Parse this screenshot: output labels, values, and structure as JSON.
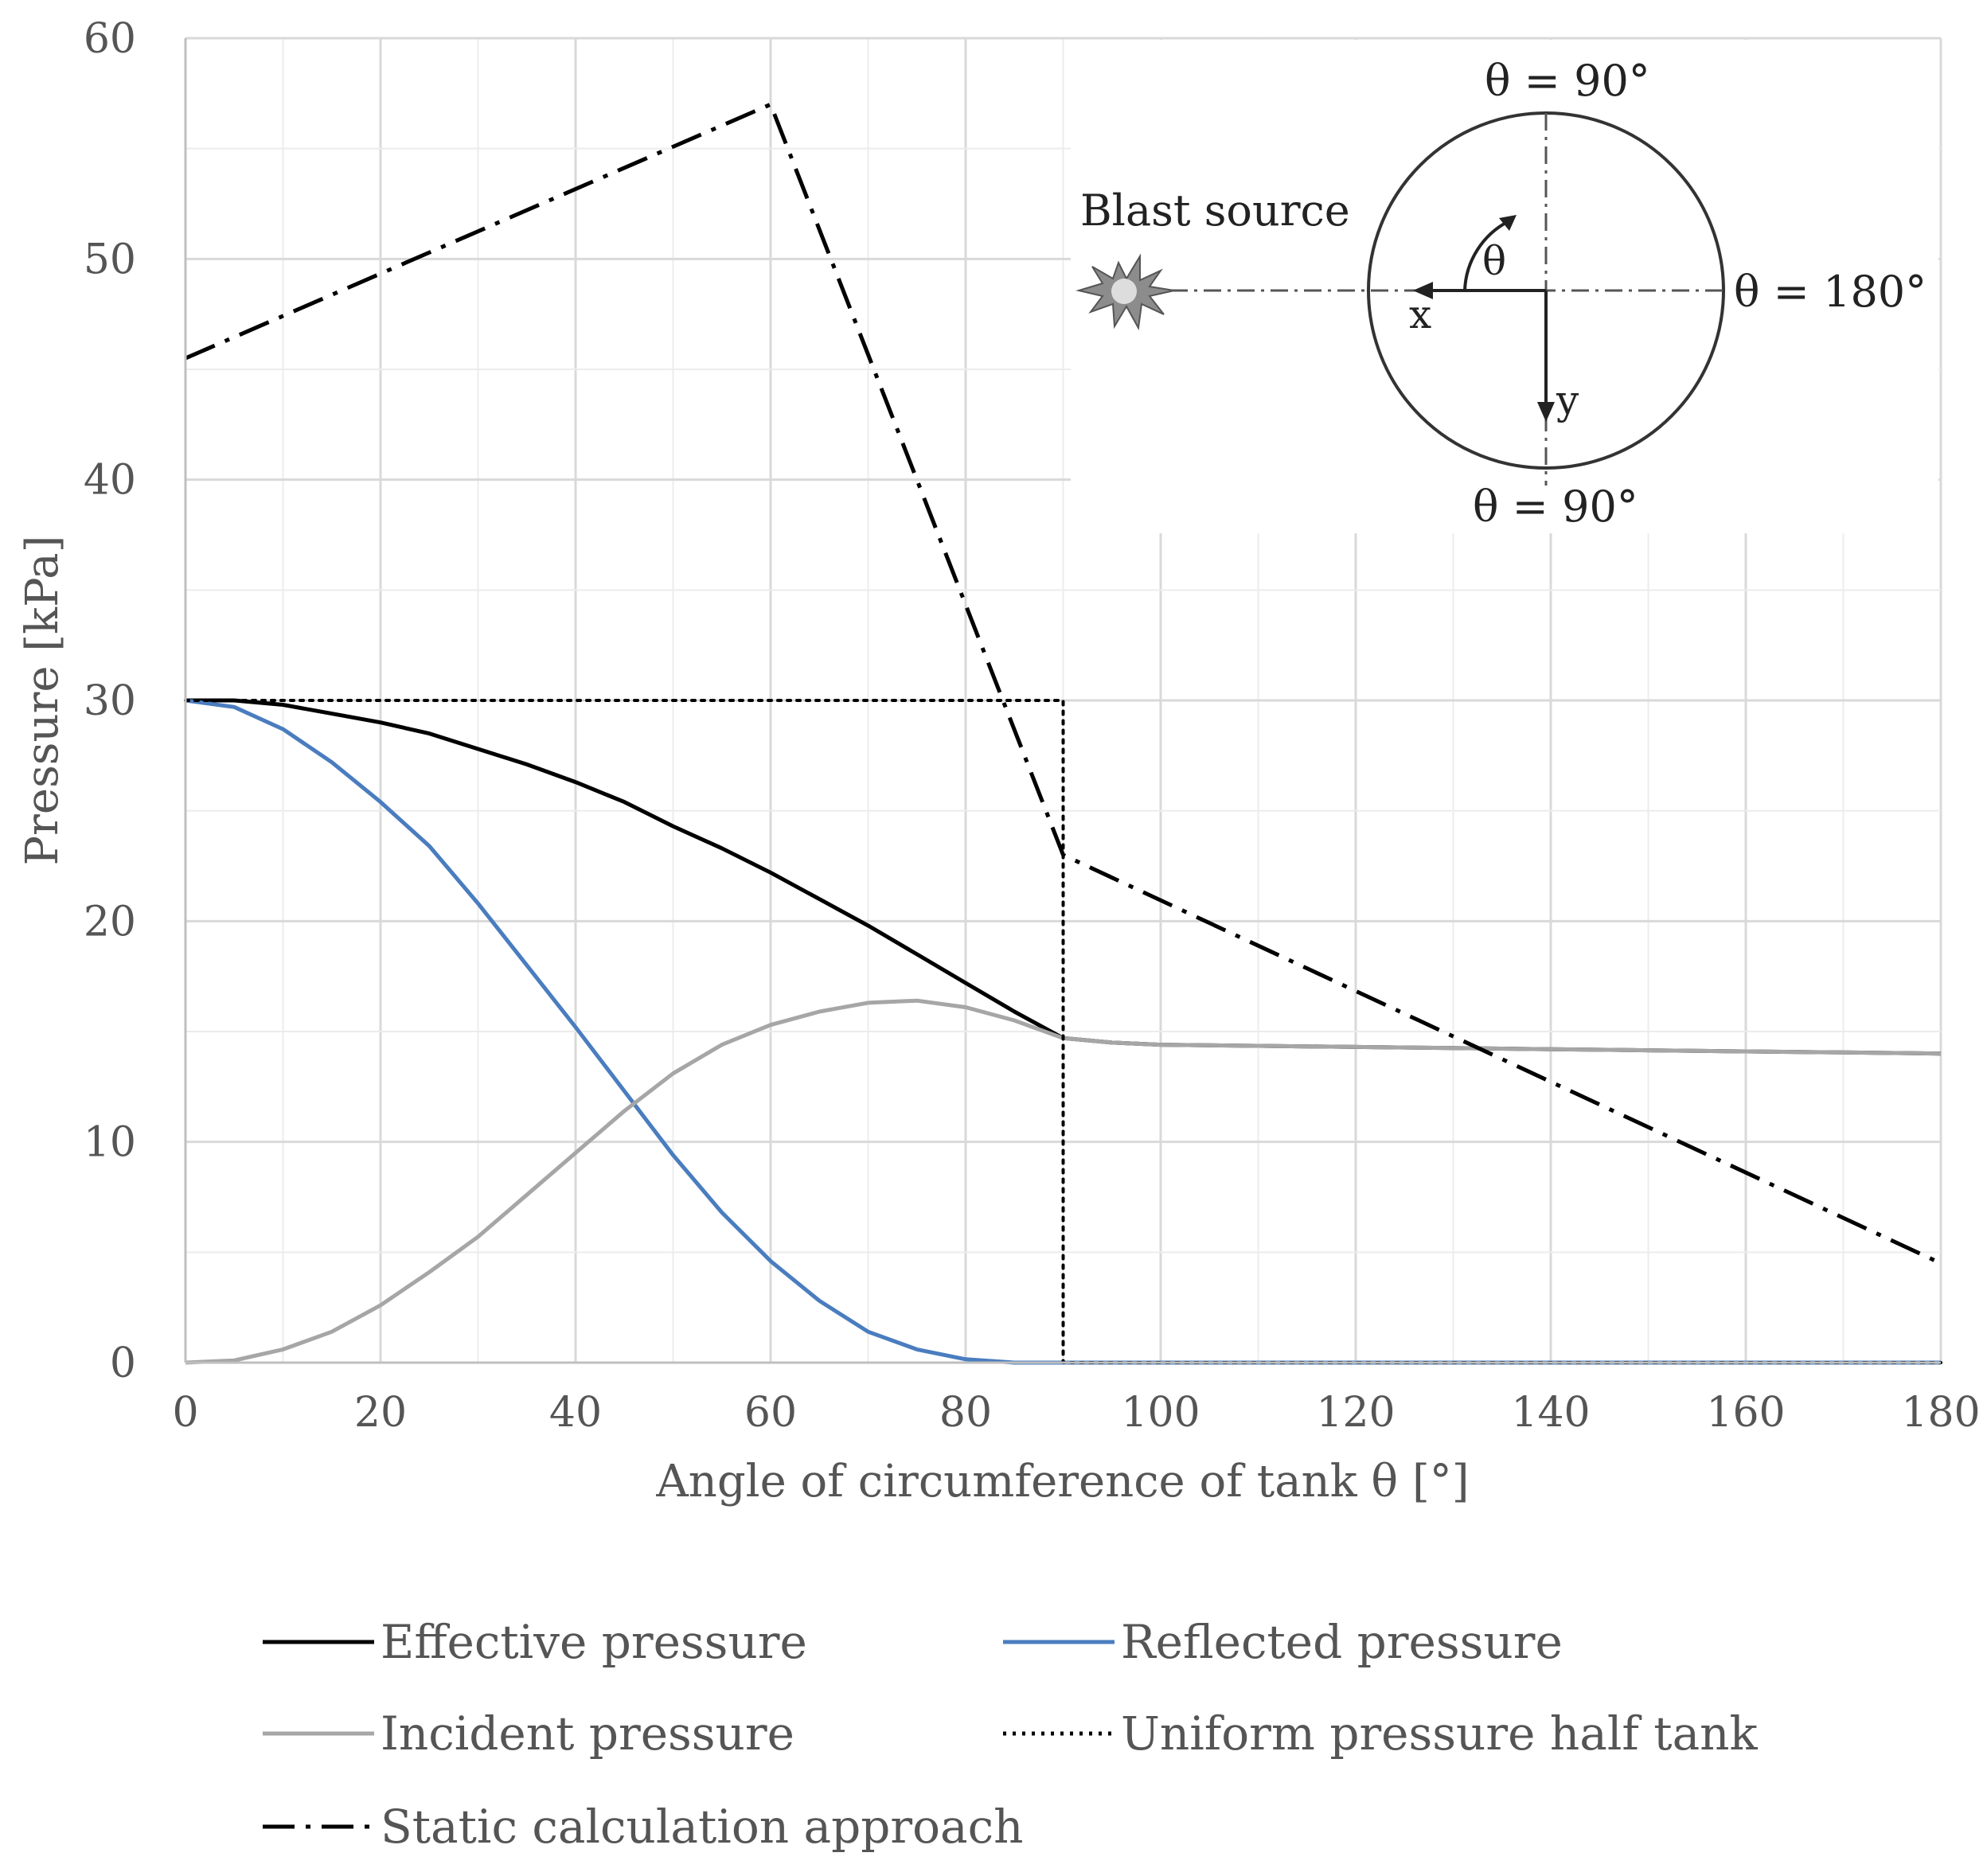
{
  "chart_data": {
    "type": "line",
    "title": "",
    "xlabel": "Angle of circumference of tank θ [°]",
    "ylabel": "Pressure [kPa]",
    "xlim": [
      0,
      180
    ],
    "ylim": [
      0,
      60
    ],
    "x_ticks": [
      0,
      20,
      40,
      60,
      80,
      100,
      120,
      140,
      160,
      180
    ],
    "y_ticks": [
      0,
      10,
      20,
      30,
      40,
      50,
      60
    ],
    "x_tick_labels": [
      "0",
      "20",
      "40",
      "60",
      "80",
      "100",
      "120",
      "140",
      "160",
      "180"
    ],
    "y_tick_labels": [
      "0",
      "10",
      "20",
      "30",
      "40",
      "50",
      "60"
    ],
    "grid": true,
    "legend_position": "bottom",
    "series": [
      {
        "name": "Effective pressure",
        "color": "#000000",
        "style": "solid",
        "x": [
          0,
          5,
          10,
          15,
          20,
          25,
          30,
          35,
          40,
          45,
          50,
          55,
          60,
          65,
          70,
          75,
          80,
          85,
          90,
          95,
          100,
          110,
          120,
          130,
          140,
          150,
          160,
          170,
          180
        ],
        "y": [
          30.0,
          30.0,
          29.8,
          29.4,
          29.0,
          28.5,
          27.8,
          27.1,
          26.3,
          25.4,
          24.3,
          23.3,
          22.2,
          21.0,
          19.8,
          18.5,
          17.2,
          15.9,
          14.7,
          14.5,
          14.4,
          14.35,
          14.3,
          14.25,
          14.2,
          14.15,
          14.1,
          14.05,
          14.0
        ]
      },
      {
        "name": "Reflected pressure",
        "color": "#4a7dbf",
        "style": "solid",
        "x": [
          0,
          5,
          10,
          15,
          20,
          25,
          30,
          35,
          40,
          45,
          50,
          55,
          60,
          65,
          70,
          75,
          80,
          85,
          90,
          100,
          120,
          140,
          160,
          180
        ],
        "y": [
          30.0,
          29.7,
          28.7,
          27.2,
          25.4,
          23.4,
          20.8,
          18.0,
          15.2,
          12.3,
          9.4,
          6.8,
          4.6,
          2.8,
          1.4,
          0.6,
          0.15,
          0.0,
          0.0,
          0.0,
          0.0,
          0.0,
          0.0,
          0.0
        ]
      },
      {
        "name": "Incident pressure",
        "color": "#a6a6a6",
        "style": "solid",
        "x": [
          0,
          5,
          10,
          15,
          20,
          25,
          30,
          35,
          40,
          45,
          50,
          55,
          60,
          65,
          70,
          75,
          80,
          85,
          90,
          95,
          100,
          110,
          120,
          130,
          140,
          150,
          160,
          170,
          180
        ],
        "y": [
          0.0,
          0.1,
          0.6,
          1.4,
          2.6,
          4.1,
          5.7,
          7.6,
          9.5,
          11.4,
          13.1,
          14.4,
          15.3,
          15.9,
          16.3,
          16.4,
          16.1,
          15.5,
          14.7,
          14.5,
          14.4,
          14.35,
          14.3,
          14.25,
          14.2,
          14.15,
          14.1,
          14.05,
          14.0
        ]
      },
      {
        "name": "Uniform pressure half tank",
        "color": "#000000",
        "style": "dotted",
        "x": [
          0,
          90,
          90,
          180
        ],
        "y": [
          30.0,
          30.0,
          0.0,
          0.0
        ]
      },
      {
        "name": "Static calculation approach",
        "color": "#000000",
        "style": "dashdot",
        "x": [
          0,
          60,
          90,
          180
        ],
        "y": [
          45.5,
          57.0,
          23.0,
          4.5
        ]
      }
    ],
    "inset": {
      "blast_label": "Blast source",
      "theta_top": "θ = 90°",
      "theta_bottom": "θ = 90°",
      "theta_right": "θ = 180°",
      "theta": "θ",
      "x_axis": "x",
      "y_axis": "y"
    }
  },
  "legend": {
    "items": [
      {
        "label": "Effective pressure",
        "color": "#000000",
        "style": "solid"
      },
      {
        "label": "Reflected pressure",
        "color": "#4a7dbf",
        "style": "solid"
      },
      {
        "label": "Incident pressure",
        "color": "#a6a6a6",
        "style": "solid"
      },
      {
        "label": "Uniform pressure half tank",
        "color": "#000000",
        "style": "dotted"
      },
      {
        "label": "Static calculation approach",
        "color": "#000000",
        "style": "dashdot"
      }
    ]
  }
}
